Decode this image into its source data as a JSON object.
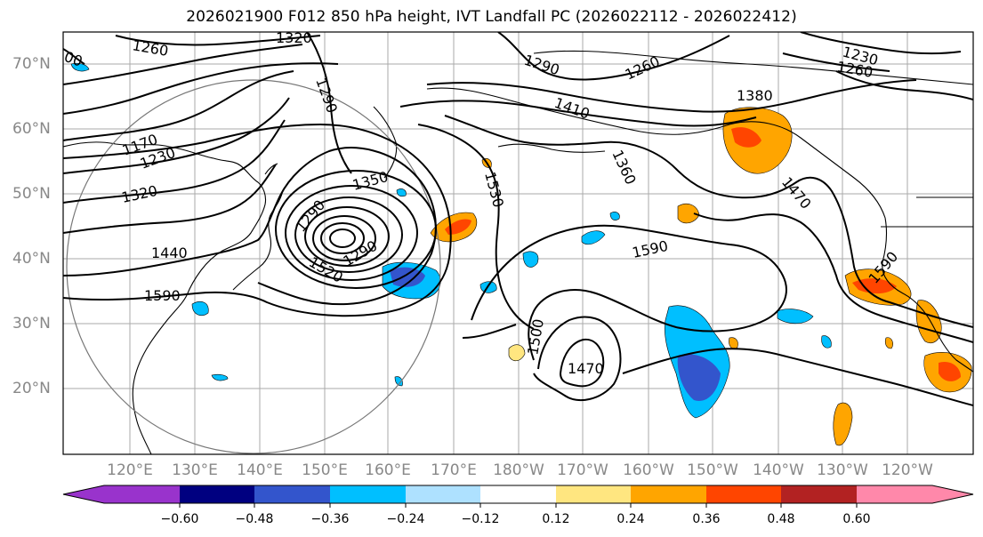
{
  "title": "2026021900 F012 850 hPa height, IVT Landfall PC (2026022112 - 2026022412)",
  "map": {
    "lat_ticks": [
      "70°N",
      "60°N",
      "50°N",
      "40°N",
      "30°N",
      "20°N"
    ],
    "lon_ticks": [
      "120°E",
      "130°E",
      "140°E",
      "150°E",
      "160°E",
      "170°E",
      "180°W",
      "170°W",
      "160°W",
      "150°W",
      "140°W",
      "130°W",
      "120°W"
    ],
    "contour_labels": [
      "1260",
      "1320",
      "1290",
      "00",
      "1170",
      "1230",
      "1320",
      "1350",
      "1440",
      "1590",
      "1290",
      "1520",
      "1290",
      "1530",
      "1410",
      "1290",
      "1260",
      "1360",
      "1380",
      "1260",
      "1230",
      "1470",
      "1590",
      "1500",
      "1470",
      "1590"
    ],
    "colors": {
      "frame": "#000000",
      "grid": "#aaaaaa",
      "contour": "#000000",
      "coast": "#000000"
    }
  },
  "colorbar": {
    "tick_labels": [
      "−0.60",
      "−0.48",
      "−0.36",
      "−0.24",
      "−0.12",
      "0.12",
      "0.24",
      "0.36",
      "0.48",
      "0.60"
    ],
    "colors": [
      "#9933cc",
      "#000080",
      "#3355cc",
      "#00bfff",
      "#aee1ff",
      "#ffffff",
      "#ffe680",
      "#ffa500",
      "#ff4500",
      "#b22222",
      "#ff88aa"
    ]
  }
}
